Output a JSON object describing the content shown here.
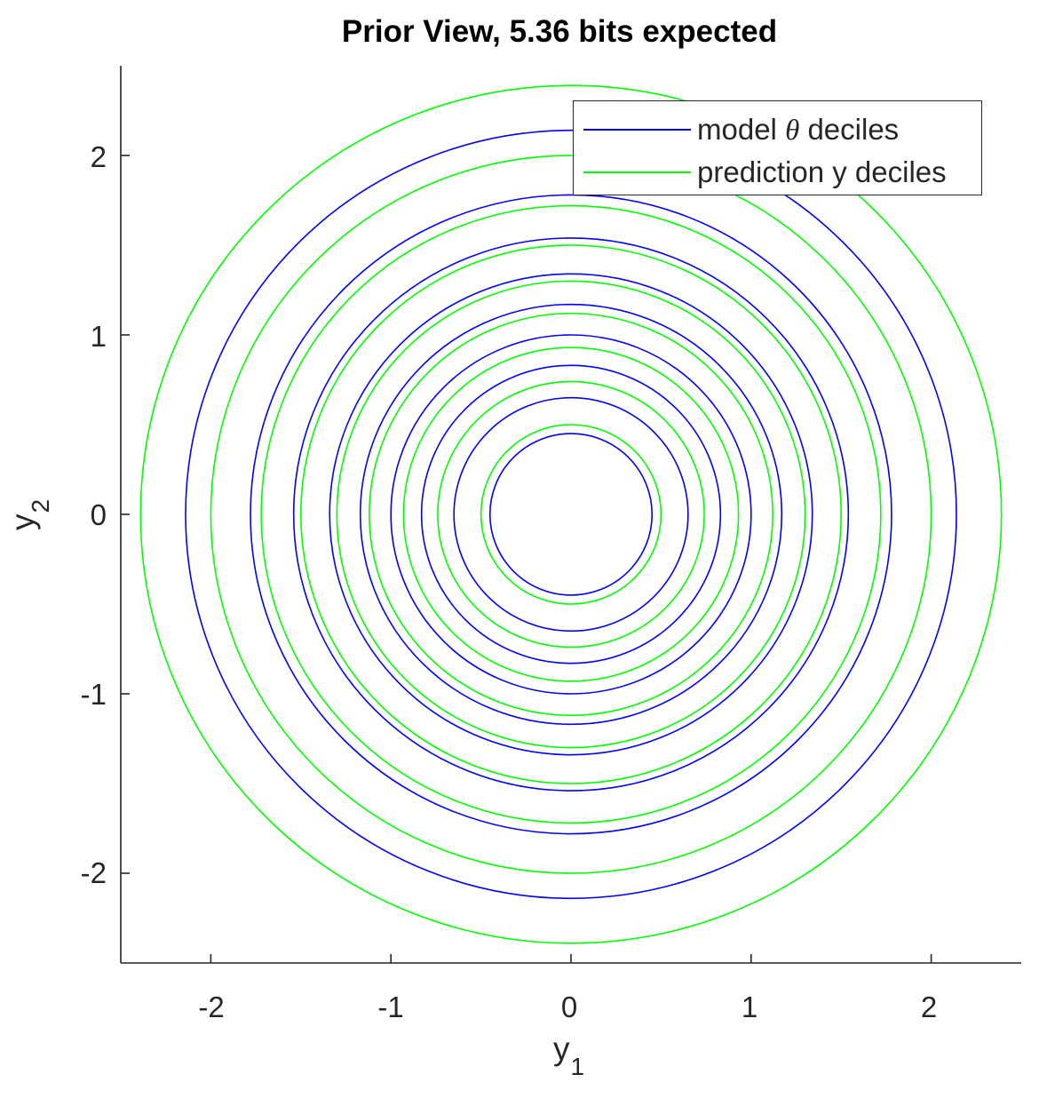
{
  "chart_data": {
    "type": "line",
    "subtype": "concentric-circles",
    "title": "Prior View, 5.36 bits expected",
    "xlabel": "y_1",
    "ylabel": "y_2",
    "xlim": [
      -2.5,
      2.5
    ],
    "ylim": [
      -2.5,
      2.5
    ],
    "xticks": [
      -2,
      -1,
      0,
      1,
      2
    ],
    "yticks": [
      -2,
      -1,
      0,
      1,
      2
    ],
    "grid": false,
    "legend_position": "northeast",
    "center": [
      0,
      0
    ],
    "series": [
      {
        "name": "model θ deciles",
        "color": "#0000ff",
        "radii": [
          0.45,
          0.65,
          0.83,
          1.0,
          1.17,
          1.34,
          1.54,
          1.78,
          2.14
        ]
      },
      {
        "name": "prediction y deciles",
        "color": "#00ff00",
        "radii": [
          0.5,
          0.74,
          0.93,
          1.12,
          1.3,
          1.5,
          1.72,
          2.0,
          2.39
        ]
      }
    ]
  },
  "figure": {
    "title": "Prior View, 5.36 bits expected",
    "xlabel": {
      "main": "y",
      "sub": "1"
    },
    "ylabel": {
      "main": "y",
      "sub": "2"
    },
    "xtick_labels": [
      "-2",
      "-1",
      "0",
      "1",
      "2"
    ],
    "ytick_labels": [
      "2",
      "1",
      "0",
      "-1",
      "-2"
    ],
    "legend": {
      "items": [
        {
          "prefix": "model ",
          "symbol": "θ",
          "suffix": " deciles",
          "color": "#0000ff"
        },
        {
          "prefix": "prediction y deciles",
          "symbol": "",
          "suffix": "",
          "color": "#00ff00"
        }
      ]
    },
    "colors": {
      "axis": "#262626",
      "model": "#0000ff",
      "prediction": "#00ff00"
    }
  }
}
